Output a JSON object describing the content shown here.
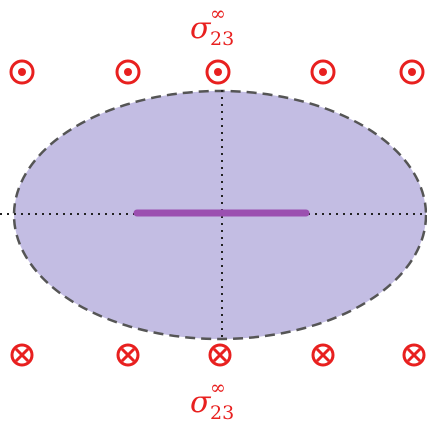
{
  "top_label": {
    "base": "σ",
    "sup": "∞",
    "sub": "23"
  },
  "bottom_label": {
    "base": "σ",
    "sup": "∞",
    "sub": "23"
  }
}
